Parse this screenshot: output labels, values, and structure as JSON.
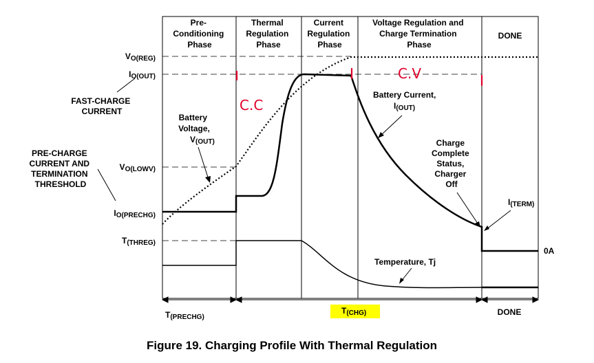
{
  "phases": {
    "preconditioning": [
      "Pre-",
      "Conditioning",
      "Phase"
    ],
    "thermal": [
      "Thermal",
      "Regulation",
      "Phase"
    ],
    "current": [
      "Current",
      "Regulation",
      "Phase"
    ],
    "voltage": [
      "Voltage Regulation and",
      "Charge Termination",
      "Phase"
    ],
    "done": "DONE"
  },
  "left_labels": {
    "vo_reg": {
      "main": "V",
      "sub": "O(REG)"
    },
    "io_out": {
      "main": "I",
      "sub": "O(OUT)"
    },
    "fast_charge": [
      "FAST-CHARGE",
      "CURRENT"
    ],
    "pre_charge": [
      "PRE-CHARGE",
      "CURRENT AND",
      "TERMINATION",
      "THRESHOLD"
    ],
    "vo_lowv": {
      "main": "V",
      "sub": "O(LOWV)"
    },
    "io_prechg": {
      "main": "I",
      "sub": "O(PRECHG)"
    },
    "t_threg": {
      "main": "T",
      "sub": "(THREG)"
    }
  },
  "annotations": {
    "battery_voltage": [
      "Battery",
      "Voltage,"
    ],
    "v_out": {
      "main": "V",
      "sub": "(OUT)"
    },
    "battery_current": "Battery Current,",
    "i_out": {
      "main": "I",
      "sub": "(OUT)"
    },
    "charge_complete": [
      "Charge",
      "Complete",
      "Status,",
      "Charger",
      "Off"
    ],
    "i_term": {
      "main": "I",
      "sub": "(TERM)"
    },
    "zero_a": "0A",
    "temperature": "Temperature,  Tj"
  },
  "handwritten": {
    "cc": "C.C",
    "cv": "C.V",
    "color": "#e0002a"
  },
  "bottom": {
    "t_prechg": {
      "main": "T",
      "sub": "(PRECHG)"
    },
    "t_chg": {
      "main": "T",
      "sub": "(CHG)"
    },
    "done": "DONE",
    "highlight_color": "#ffff00"
  },
  "caption": "Figure 19.  Charging Profile With Thermal Regulation"
}
